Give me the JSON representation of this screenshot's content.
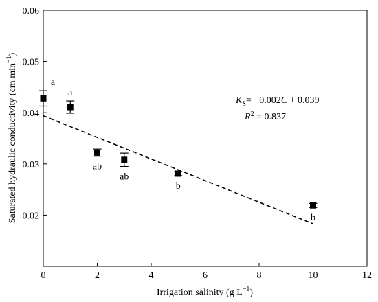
{
  "chart_data": {
    "type": "scatter",
    "xlabel": "Irrigation salinity (g L",
    "xlabel_sup": "−1",
    "xlabel_close": ")",
    "ylabel": "Saturated hydraulic conductivity (cm min",
    "ylabel_sup": "−1",
    "ylabel_close": ")",
    "xlim": [
      0,
      12
    ],
    "ylim": [
      0.01,
      0.06
    ],
    "xticks": [
      0,
      2,
      4,
      6,
      8,
      10,
      12
    ],
    "xtick_labels": [
      "0",
      "2",
      "4",
      "6",
      "8",
      "10",
      "12"
    ],
    "yticks": [
      0.02,
      0.03,
      0.04,
      0.05,
      0.06
    ],
    "ytick_labels": [
      "0.02",
      "0.03",
      "0.04",
      "0.05",
      "0.06"
    ],
    "grid": false,
    "points": [
      {
        "x": 0,
        "y": 0.0428,
        "err": 0.0015,
        "label": "a"
      },
      {
        "x": 1,
        "y": 0.0411,
        "err": 0.0012,
        "label": "a"
      },
      {
        "x": 2,
        "y": 0.0322,
        "err": 0.0007,
        "label": "ab"
      },
      {
        "x": 3,
        "y": 0.0308,
        "err": 0.0013,
        "label": "ab"
      },
      {
        "x": 5,
        "y": 0.0281,
        "err": 0.0004,
        "label": "b"
      },
      {
        "x": 10,
        "y": 0.0219,
        "err": 0.0004,
        "label": "b"
      }
    ],
    "fit": {
      "x": [
        0,
        10
      ],
      "y": [
        0.0394,
        0.0183
      ],
      "style": "dashed"
    },
    "equation": {
      "line1_var": "K",
      "line1_sub": "S",
      "line1_rest": "= −0.002",
      "line1_var2": "C",
      "line1_end": " + 0.039",
      "line2_var": "R",
      "line2_sup": "2",
      "line2_rest": " = 0.837"
    },
    "marker_color": "#000000"
  }
}
